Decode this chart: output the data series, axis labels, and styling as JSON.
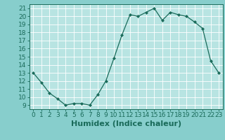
{
  "x": [
    0,
    1,
    2,
    3,
    4,
    5,
    6,
    7,
    8,
    9,
    10,
    11,
    12,
    13,
    14,
    15,
    16,
    17,
    18,
    19,
    20,
    21,
    22,
    23
  ],
  "y": [
    13.0,
    11.8,
    10.5,
    9.8,
    9.0,
    9.2,
    9.2,
    9.0,
    10.3,
    12.0,
    14.8,
    17.7,
    20.2,
    20.0,
    20.5,
    21.0,
    19.5,
    20.5,
    20.2,
    20.0,
    19.3,
    18.5,
    14.5,
    13.0
  ],
  "line_color": "#1a6b5a",
  "marker": "D",
  "marker_size": 2,
  "bg_color": "#87cecc",
  "plot_bg_color": "#b8e4e2",
  "grid_color": "#ffffff",
  "xlabel": "Humidex (Indice chaleur)",
  "xlabel_fontsize": 8,
  "tick_fontsize": 6.5,
  "ylim": [
    8.5,
    21.5
  ],
  "yticks": [
    9,
    10,
    11,
    12,
    13,
    14,
    15,
    16,
    17,
    18,
    19,
    20,
    21
  ],
  "xlim": [
    -0.5,
    23.5
  ],
  "xticks": [
    0,
    1,
    2,
    3,
    4,
    5,
    6,
    7,
    8,
    9,
    10,
    11,
    12,
    13,
    14,
    15,
    16,
    17,
    18,
    19,
    20,
    21,
    22,
    23
  ]
}
